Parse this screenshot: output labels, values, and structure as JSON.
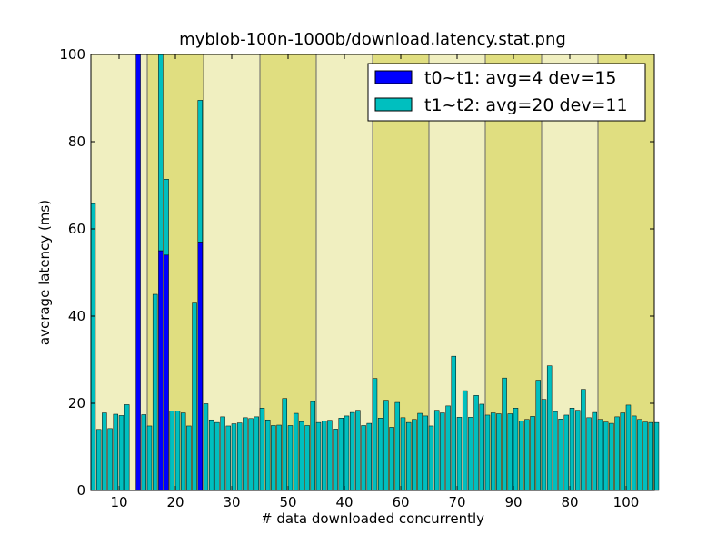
{
  "chart_data": {
    "type": "bar",
    "title": "myblob-100n-1000b/download.latency.stat.png",
    "xlabel": "# data downloaded concurrently",
    "ylabel": "average latency (ms)",
    "xlim": [
      5,
      105
    ],
    "ylim": [
      0,
      100
    ],
    "grid": false,
    "legend_position": "top-right",
    "x_tick_labels": [
      "10",
      "20",
      "30",
      "50",
      "40",
      "60",
      "70",
      "90",
      "80",
      "100"
    ],
    "y_tick_labels": [
      "0",
      "20",
      "40",
      "60",
      "80",
      "100"
    ],
    "colors": {
      "band_light": "#f0efc0",
      "band_dark": "#e0de80",
      "band_line": "#666666",
      "series_t0": "#0000ff",
      "series_t1": "#00bfbf"
    },
    "series": [
      {
        "name": "t0~t1: avg=4 dev=15",
        "values": [
          0,
          0,
          0,
          0,
          0,
          0,
          0,
          0,
          100,
          0,
          0,
          0,
          55,
          54,
          0,
          0,
          0,
          0,
          0,
          57,
          0,
          0,
          0,
          0,
          0,
          0,
          0,
          0,
          0,
          0,
          0,
          0,
          0,
          0,
          0,
          0,
          0,
          0,
          0,
          0,
          0,
          0,
          0,
          0,
          0,
          0,
          0,
          0,
          0,
          0,
          0,
          0,
          0,
          0,
          0,
          0,
          0,
          0,
          0,
          0,
          0,
          0,
          0,
          0,
          0,
          0,
          0,
          0,
          0,
          0,
          0,
          0,
          0,
          0,
          0,
          0,
          0,
          0,
          0,
          0,
          0,
          0,
          0,
          0,
          0,
          0,
          0,
          0,
          0,
          0,
          0,
          0,
          0,
          0,
          0,
          0,
          0,
          0,
          0,
          0,
          0
        ]
      },
      {
        "name": "t1~t2: avg=20 dev=11",
        "values": [
          65.8,
          14,
          17.8,
          14.2,
          17.5,
          17.2,
          19.7,
          0,
          15.2,
          17.4,
          14.8,
          45,
          46.5,
          17.4,
          18.2,
          18.2,
          17.8,
          14.8,
          43,
          32.5,
          19.9,
          16.2,
          15.6,
          16.9,
          14.8,
          15.3,
          15.5,
          16.7,
          16.5,
          16.9,
          18.9,
          16.2,
          14.9,
          15,
          21.1,
          14.9,
          17.7,
          15.8,
          14.9,
          20.4,
          15.6,
          15.9,
          16.1,
          14.1,
          16.6,
          17.1,
          17.9,
          18.4,
          14.9,
          15.4,
          25.7,
          16.6,
          20.7,
          14.5,
          20.2,
          16.7,
          15.6,
          16.3,
          17.7,
          17.1,
          14.8,
          18.4,
          17.8,
          19.4,
          30.8,
          16.8,
          22.9,
          16.8,
          21.8,
          19.8,
          17.3,
          17.8,
          17.6,
          25.8,
          17.6,
          18.9,
          15.9,
          16.3,
          17,
          25.3,
          20.9,
          28.6,
          18.1,
          16.4,
          17.3,
          18.9,
          18.4,
          23.2,
          16.7,
          17.9,
          16.3,
          15.7,
          15.4,
          16.9,
          17.8,
          19.6,
          17.1,
          16.3,
          15.7,
          15.6,
          15.6
        ]
      }
    ]
  }
}
